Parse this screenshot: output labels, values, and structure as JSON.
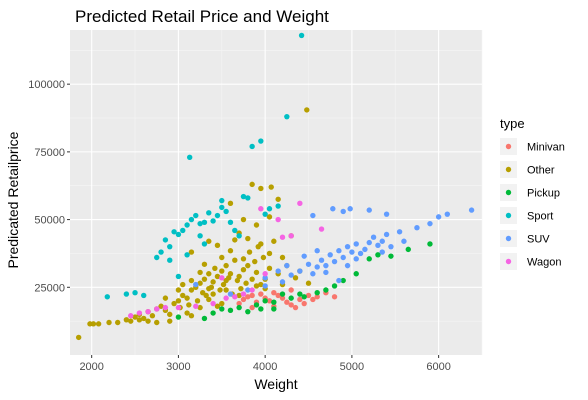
{
  "chart_data": {
    "type": "scatter",
    "title": "Predicted Retail Price and Weight",
    "xlabel": "Weight",
    "ylabel": "Predicated Retailprice",
    "xlim": [
      1750,
      6500
    ],
    "ylim": [
      0,
      120000
    ],
    "x_ticks": [
      2000,
      3000,
      4000,
      5000,
      6000
    ],
    "x_tick_labels": [
      "2000",
      "3000",
      "4000",
      "5000",
      "6000"
    ],
    "y_ticks": [
      25000,
      50000,
      75000,
      100000
    ],
    "y_tick_labels": [
      "25000",
      "50000",
      "75000",
      "100000"
    ],
    "grid": true,
    "legend_title": "type",
    "legend_position": "right",
    "series": [
      {
        "name": "Minivan",
        "color": "#F8766D",
        "points": [
          [
            3750,
            20500
          ],
          [
            3800,
            21500
          ],
          [
            3850,
            22000
          ],
          [
            3900,
            19500
          ],
          [
            3950,
            22500
          ],
          [
            4000,
            21000
          ],
          [
            4050,
            20000
          ],
          [
            4100,
            23000
          ],
          [
            4150,
            22000
          ],
          [
            4200,
            21000
          ],
          [
            4250,
            19500
          ],
          [
            4300,
            18500
          ],
          [
            4350,
            17500
          ],
          [
            4400,
            20500
          ],
          [
            4450,
            19000
          ],
          [
            4500,
            22000
          ],
          [
            4550,
            20500
          ],
          [
            4600,
            21500
          ],
          [
            4700,
            23000
          ],
          [
            4800,
            21500
          ],
          [
            3700,
            19000
          ],
          [
            3850,
            17500
          ],
          [
            4100,
            18000
          ],
          [
            4300,
            24000
          ]
        ]
      },
      {
        "name": "Other",
        "color": "#B79F00",
        "points": [
          [
            1850,
            6500
          ],
          [
            1980,
            11500
          ],
          [
            2020,
            11500
          ],
          [
            2080,
            11500
          ],
          [
            2200,
            12000
          ],
          [
            2300,
            12000
          ],
          [
            2400,
            13000
          ],
          [
            2450,
            12500
          ],
          [
            2500,
            14000
          ],
          [
            2550,
            15000
          ],
          [
            2600,
            13500
          ],
          [
            2650,
            16000
          ],
          [
            2700,
            14500
          ],
          [
            2750,
            17000
          ],
          [
            2800,
            18000
          ],
          [
            2850,
            16500
          ],
          [
            2900,
            15000
          ],
          [
            2950,
            19000
          ],
          [
            3000,
            20000
          ],
          [
            3020,
            17500
          ],
          [
            3050,
            22000
          ],
          [
            3100,
            21000
          ],
          [
            3120,
            18500
          ],
          [
            3150,
            24000
          ],
          [
            3200,
            25000
          ],
          [
            3220,
            20000
          ],
          [
            3250,
            26500
          ],
          [
            3280,
            23000
          ],
          [
            3300,
            28000
          ],
          [
            3320,
            22000
          ],
          [
            3350,
            30000
          ],
          [
            3380,
            25000
          ],
          [
            3400,
            27000
          ],
          [
            3420,
            32000
          ],
          [
            3450,
            29000
          ],
          [
            3480,
            24000
          ],
          [
            3500,
            31000
          ],
          [
            3520,
            26000
          ],
          [
            3550,
            33000
          ],
          [
            3580,
            28500
          ],
          [
            3600,
            30000
          ],
          [
            3620,
            22500
          ],
          [
            3650,
            35000
          ],
          [
            3680,
            27500
          ],
          [
            3700,
            29000
          ],
          [
            3720,
            24500
          ],
          [
            3750,
            31500
          ],
          [
            3780,
            26500
          ],
          [
            3800,
            33000
          ],
          [
            3820,
            38000
          ],
          [
            3850,
            28000
          ],
          [
            3880,
            34500
          ],
          [
            3900,
            30500
          ],
          [
            3920,
            40000
          ],
          [
            3950,
            26000
          ],
          [
            3980,
            36000
          ],
          [
            4000,
            28000
          ],
          [
            4050,
            32000
          ],
          [
            4100,
            42000
          ],
          [
            4150,
            30000
          ],
          [
            4200,
            36000
          ],
          [
            4300,
            44000
          ],
          [
            4400,
            31000
          ],
          [
            4500,
            26500
          ],
          [
            3150,
            38000
          ],
          [
            3350,
            42000
          ],
          [
            3500,
            36000
          ],
          [
            3700,
            45000
          ],
          [
            3750,
            50000
          ],
          [
            3900,
            48000
          ],
          [
            3600,
            56000
          ],
          [
            3850,
            63000
          ],
          [
            4050,
            51000
          ],
          [
            3950,
            41000
          ],
          [
            3300,
            33500
          ],
          [
            3400,
            22500
          ],
          [
            3250,
            17500
          ],
          [
            3150,
            14500
          ],
          [
            3050,
            26000
          ],
          [
            3500,
            19000
          ],
          [
            4070,
            62000
          ],
          [
            4480,
            90500
          ],
          [
            3450,
            18000
          ],
          [
            3700,
            22000
          ],
          [
            3550,
            24000
          ],
          [
            4000,
            24500
          ],
          [
            4200,
            26000
          ],
          [
            3900,
            25500
          ],
          [
            2900,
            12500
          ],
          [
            3100,
            15500
          ],
          [
            2650,
            12500
          ],
          [
            2750,
            12000
          ],
          [
            3350,
            20500
          ],
          [
            3600,
            38500
          ],
          [
            3800,
            43000
          ],
          [
            3450,
            40500
          ],
          [
            3650,
            42500
          ],
          [
            4150,
            57500
          ],
          [
            3950,
            61500
          ],
          [
            3250,
            30500
          ],
          [
            3550,
            27500
          ],
          [
            3750,
            35500
          ],
          [
            4050,
            37500
          ],
          [
            4250,
            33000
          ],
          [
            4350,
            28500
          ],
          [
            3000,
            24000
          ],
          [
            3150,
            27500
          ],
          [
            3350,
            24500
          ],
          [
            2850,
            21000
          ],
          [
            2550,
            13000
          ]
        ]
      },
      {
        "name": "Pickup",
        "color": "#00BA38",
        "points": [
          [
            3000,
            14000
          ],
          [
            3300,
            13500
          ],
          [
            3400,
            15500
          ],
          [
            3500,
            17000
          ],
          [
            3600,
            16500
          ],
          [
            3700,
            17500
          ],
          [
            3800,
            16000
          ],
          [
            3900,
            18500
          ],
          [
            3950,
            17000
          ],
          [
            4000,
            20000
          ],
          [
            4100,
            19500
          ],
          [
            4200,
            22500
          ],
          [
            4300,
            21000
          ],
          [
            4400,
            22500
          ],
          [
            4450,
            21500
          ],
          [
            4600,
            23000
          ],
          [
            4700,
            24000
          ],
          [
            4800,
            25500
          ],
          [
            4900,
            27500
          ],
          [
            5050,
            30000
          ],
          [
            5200,
            35500
          ],
          [
            5300,
            37000
          ],
          [
            5450,
            36500
          ],
          [
            5650,
            39000
          ],
          [
            5900,
            41000
          ],
          [
            4100,
            17000
          ]
        ]
      },
      {
        "name": "Sport",
        "color": "#00BFC4",
        "points": [
          [
            2180,
            21500
          ],
          [
            2400,
            22500
          ],
          [
            2500,
            23000
          ],
          [
            2600,
            22000
          ],
          [
            2750,
            36000
          ],
          [
            2800,
            38000
          ],
          [
            2850,
            42500
          ],
          [
            2900,
            40000
          ],
          [
            2950,
            45500
          ],
          [
            3000,
            44500
          ],
          [
            3050,
            46000
          ],
          [
            3100,
            48000
          ],
          [
            3130,
            73000
          ],
          [
            3150,
            50000
          ],
          [
            3200,
            51500
          ],
          [
            3250,
            48500
          ],
          [
            3300,
            49000
          ],
          [
            3350,
            52500
          ],
          [
            3400,
            49500
          ],
          [
            3450,
            51500
          ],
          [
            3500,
            57000
          ],
          [
            3550,
            53000
          ],
          [
            3600,
            49000
          ],
          [
            3650,
            46000
          ],
          [
            3700,
            44000
          ],
          [
            3800,
            58000
          ],
          [
            3850,
            77000
          ],
          [
            3950,
            79000
          ],
          [
            4050,
            54000
          ],
          [
            4150,
            55000
          ],
          [
            4250,
            88000
          ],
          [
            4420,
            118000
          ],
          [
            3300,
            41000
          ],
          [
            3000,
            29000
          ],
          [
            2900,
            35000
          ],
          [
            3100,
            37000
          ],
          [
            3250,
            44000
          ],
          [
            3500,
            54500
          ],
          [
            3750,
            58500
          ],
          [
            4000,
            52000
          ]
        ]
      },
      {
        "name": "SUV",
        "color": "#619CFF",
        "points": [
          [
            3200,
            26000
          ],
          [
            3600,
            22500
          ],
          [
            3800,
            24000
          ],
          [
            4000,
            25500
          ],
          [
            4200,
            27000
          ],
          [
            4300,
            29500
          ],
          [
            4400,
            31000
          ],
          [
            4500,
            33500
          ],
          [
            4550,
            30000
          ],
          [
            4600,
            32500
          ],
          [
            4650,
            35000
          ],
          [
            4700,
            33000
          ],
          [
            4750,
            37000
          ],
          [
            4800,
            34500
          ],
          [
            4850,
            38500
          ],
          [
            4900,
            36000
          ],
          [
            4950,
            40000
          ],
          [
            5000,
            38000
          ],
          [
            5050,
            35500
          ],
          [
            5100,
            37500
          ],
          [
            5150,
            39000
          ],
          [
            5200,
            41500
          ],
          [
            5250,
            43500
          ],
          [
            5300,
            40500
          ],
          [
            5350,
            42000
          ],
          [
            5400,
            44500
          ],
          [
            5450,
            40000
          ],
          [
            5550,
            45500
          ],
          [
            5600,
            42000
          ],
          [
            5750,
            47000
          ],
          [
            5900,
            48500
          ],
          [
            6000,
            51000
          ],
          [
            6100,
            52000
          ],
          [
            6380,
            53500
          ],
          [
            4550,
            51500
          ],
          [
            4780,
            54000
          ],
          [
            4900,
            53000
          ],
          [
            4980,
            54000
          ],
          [
            5200,
            53500
          ],
          [
            5400,
            52000
          ],
          [
            4250,
            33000
          ],
          [
            4450,
            36500
          ],
          [
            4700,
            30500
          ],
          [
            4950,
            33000
          ],
          [
            5050,
            41000
          ],
          [
            5350,
            38000
          ],
          [
            4000,
            28500
          ],
          [
            4150,
            31000
          ],
          [
            4600,
            38500
          ],
          [
            4850,
            27500
          ]
        ]
      },
      {
        "name": "Wagon",
        "color": "#F564E3",
        "points": [
          [
            2450,
            14500
          ],
          [
            2550,
            15500
          ],
          [
            2650,
            16000
          ],
          [
            2750,
            17000
          ],
          [
            2850,
            17500
          ],
          [
            3000,
            17500
          ],
          [
            3200,
            18000
          ],
          [
            3400,
            19000
          ],
          [
            3550,
            21000
          ],
          [
            3650,
            21500
          ],
          [
            3750,
            22500
          ],
          [
            3850,
            24000
          ],
          [
            3950,
            54000
          ],
          [
            4150,
            50000
          ],
          [
            4300,
            44000
          ],
          [
            4400,
            56000
          ],
          [
            4650,
            46500
          ],
          [
            3500,
            28500
          ],
          [
            4000,
            30000
          ],
          [
            4200,
            43500
          ]
        ]
      }
    ]
  }
}
